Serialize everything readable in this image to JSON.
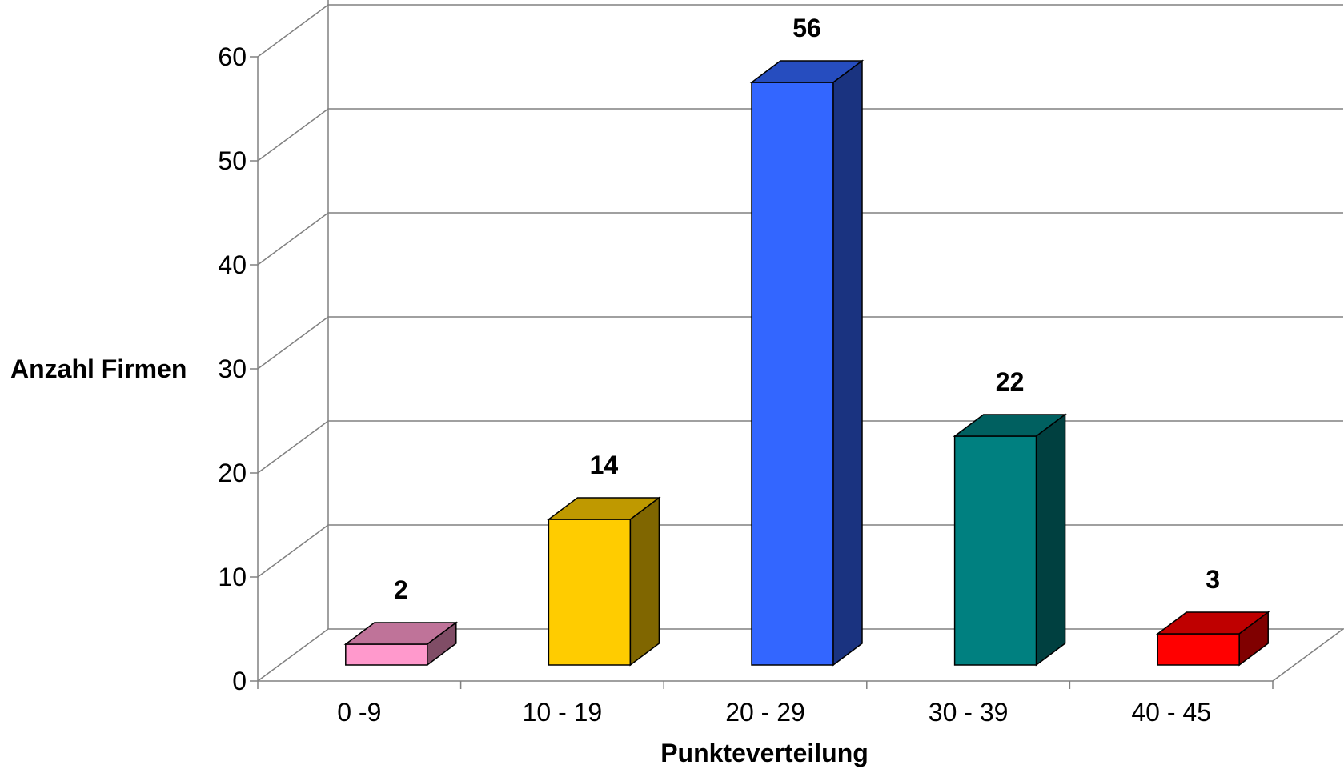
{
  "chart_data": {
    "type": "bar",
    "style": "3d-column",
    "categories": [
      "0 -9",
      "10 - 19",
      "20 - 29",
      "30 - 39",
      "40 - 45"
    ],
    "values": [
      2,
      14,
      56,
      22,
      3
    ],
    "data_labels": [
      "2",
      "14",
      "56",
      "22",
      "3"
    ],
    "colors": [
      "#FF99CC",
      "#FFCC00",
      "#3366FF",
      "#008080",
      "#FF0000"
    ],
    "xlabel": "Punkteverteilung",
    "ylabel": "Anzahl Firmen",
    "ylim": [
      0,
      60
    ],
    "yticks": [
      0,
      10,
      20,
      30,
      40,
      50,
      60
    ],
    "grid": true,
    "legend": false
  }
}
